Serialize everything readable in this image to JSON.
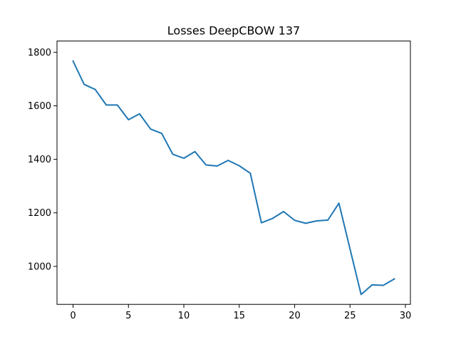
{
  "chart_data": {
    "type": "line",
    "title": "Losses DeepCBOW 137",
    "xlabel": "",
    "ylabel": "",
    "xlim": [
      -1.45,
      30.45
    ],
    "ylim": [
      858,
      1842
    ],
    "x_ticks": [
      0,
      5,
      10,
      15,
      20,
      25,
      30
    ],
    "y_ticks": [
      1000,
      1200,
      1400,
      1600,
      1800
    ],
    "grid": false,
    "legend": "none",
    "line_color": "#1f77b4",
    "series": [
      {
        "x": [
          0,
          1,
          2,
          3,
          4,
          5,
          6,
          7,
          8,
          9,
          10,
          11,
          12,
          13,
          14,
          15,
          16,
          17,
          18,
          19,
          20,
          21,
          22,
          23,
          24,
          25,
          26,
          27,
          28,
          29
        ],
        "values": [
          1767,
          1680,
          1661,
          1603,
          1603,
          1548,
          1570,
          1513,
          1497,
          1419,
          1404,
          1429,
          1379,
          1375,
          1396,
          1376,
          1348,
          1163,
          1179,
          1205,
          1172,
          1161,
          1170,
          1173,
          1236,
          1065,
          895,
          931,
          929,
          953
        ]
      }
    ]
  }
}
